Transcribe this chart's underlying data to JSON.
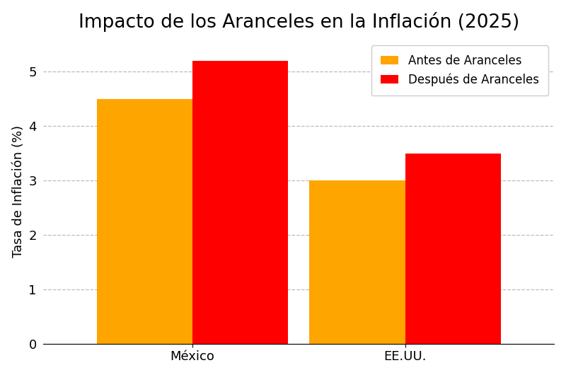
{
  "title": "Impacto de los Aranceles en la Inflación (2025)",
  "ylabel": "Tasa de Inflación (%)",
  "categories": [
    "México",
    "EE.UU."
  ],
  "before_values": [
    4.5,
    3.0
  ],
  "after_values": [
    5.2,
    3.5
  ],
  "before_color": "#FFA500",
  "after_color": "#FF0000",
  "before_label": "Antes de Aranceles",
  "after_label": "Después de Aranceles",
  "ylim": [
    0,
    5.6
  ],
  "background_color": "#ffffff",
  "title_fontsize": 19,
  "axis_fontsize": 13,
  "tick_fontsize": 13,
  "legend_fontsize": 12,
  "bar_width": 0.45,
  "grid_color": "#aaaaaa",
  "grid_linestyle": "--"
}
